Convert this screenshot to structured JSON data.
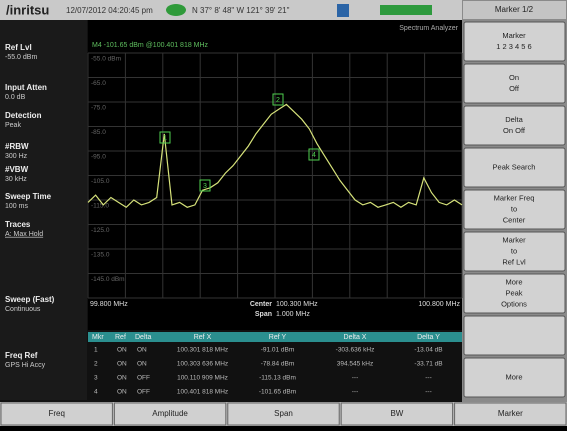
{
  "header": {
    "brand": "/inritsu",
    "datetime": "12/07/2012 04:20:45 pm",
    "gps": "N 37° 8' 48\" W 121° 39' 21\"",
    "mode": "Spectrum Analyzer"
  },
  "left_panel": [
    {
      "label": "Ref Lvl",
      "value": "-55.0 dBm"
    },
    {
      "label": "Input Atten",
      "value": "0.0 dB"
    },
    {
      "label": "Detection",
      "value": "Peak"
    },
    {
      "label": "#RBW",
      "value": "300 Hz"
    },
    {
      "label": "#VBW",
      "value": "30 kHz"
    },
    {
      "label": "Sweep Time",
      "value": "100 ms"
    },
    {
      "label": "Traces",
      "value": "A: Max Hold"
    },
    {
      "label": "Sweep (Fast)",
      "value": "Continuous"
    },
    {
      "label": "Freq Ref",
      "value": "GPS Hi Accy"
    }
  ],
  "graph": {
    "marker_readout": "M4 -101.65 dBm @100.401 818 MHz",
    "ylim": [
      -155,
      -55
    ],
    "yticks": [
      {
        "value": -55,
        "label": "-55.0 dBm"
      },
      {
        "value": -65,
        "label": "-65.0"
      },
      {
        "value": -75,
        "label": "-75.0"
      },
      {
        "value": -85,
        "label": "-85.0"
      },
      {
        "value": -95,
        "label": "-95.0"
      },
      {
        "value": -105,
        "label": "-105.0"
      },
      {
        "value": -115,
        "label": "-115.0"
      },
      {
        "value": -125,
        "label": "-125.0"
      },
      {
        "value": -135,
        "label": "-135.0"
      },
      {
        "value": -145,
        "label": "-145.0 dBm"
      }
    ],
    "trace_color": "#d6e27a",
    "trace": [
      -116,
      -113,
      -117,
      -114,
      -116,
      -118,
      -115,
      -117,
      -116,
      -114,
      -88,
      -117,
      -116,
      -118,
      -117,
      -111,
      -110,
      -108,
      -104,
      -101,
      -97,
      -93,
      -88,
      -84,
      -80,
      -78,
      -76,
      -79,
      -82,
      -86,
      -92,
      -97,
      -102,
      -107,
      -111,
      -115,
      -117,
      -116,
      -118,
      -117,
      -116,
      -118,
      -116,
      -117,
      -106,
      -112,
      -116,
      -117,
      -115,
      -117
    ],
    "start": "99.800 MHz",
    "center_label": "Center",
    "center": "100.300 MHz",
    "span_label": "Span",
    "span": "1.000 MHz",
    "stop": "100.800 MHz"
  },
  "marker_table": {
    "columns": [
      "Mkr",
      "Ref",
      "Delta",
      "Ref X",
      "Ref Y",
      "Delta X",
      "Delta Y"
    ],
    "rows": [
      [
        "1",
        "ON",
        "ON",
        "100.301 818 MHz",
        "-91.01 dBm",
        "-303.636 kHz",
        "-13.04 dB"
      ],
      [
        "2",
        "ON",
        "ON",
        "100.303 636 MHz",
        "-78.84 dBm",
        "394.545 kHz",
        "-33.71 dB"
      ],
      [
        "3",
        "ON",
        "OFF",
        "100.110 909 MHz",
        "-115.13 dBm",
        "---",
        "---"
      ],
      [
        "4",
        "ON",
        "OFF",
        "100.401 818 MHz",
        "-101.65 dBm",
        "---",
        "---"
      ]
    ]
  },
  "softkeys": {
    "title": "Marker 1/2",
    "keys": [
      [
        "Marker",
        "1 2 3 4 5 6"
      ],
      [
        "On",
        "Off"
      ],
      [
        "Delta",
        "On      Off"
      ],
      [
        "Peak Search"
      ],
      [
        "Marker Freq",
        "to",
        "Center"
      ],
      [
        "Marker",
        "to",
        "Ref Lvl"
      ],
      [
        "More",
        "Peak",
        "Options"
      ],
      [
        "More"
      ]
    ]
  },
  "tabs": [
    "Freq",
    "Amplitude",
    "Span",
    "BW",
    "Marker"
  ]
}
